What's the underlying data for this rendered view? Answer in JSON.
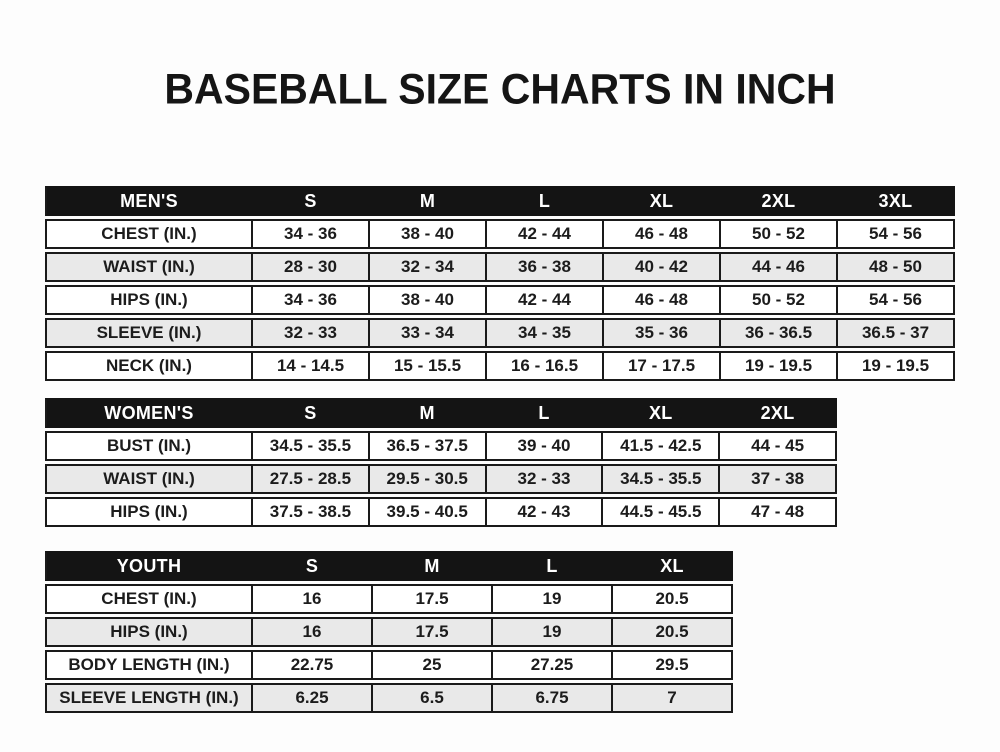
{
  "page": {
    "title": "BASEBALL SIZE CHARTS IN INCH"
  },
  "colors": {
    "header_bg": "#141414",
    "header_text": "#ffffff",
    "alt_row_bg": "#e9e9e9",
    "border": "#1a1a1a",
    "text": "#1c1c1c",
    "page_bg": "#fdfdfd"
  },
  "tables": [
    {
      "name": "mens",
      "header": [
        "MEN'S",
        "S",
        "M",
        "L",
        "XL",
        "2XL",
        "3XL"
      ],
      "rows": [
        [
          "CHEST (IN.)",
          "34 - 36",
          "38 - 40",
          "42 - 44",
          "46 - 48",
          "50 - 52",
          "54 - 56"
        ],
        [
          "WAIST (IN.)",
          "28 - 30",
          "32 - 34",
          "36 - 38",
          "40 - 42",
          "44 - 46",
          "48 - 50"
        ],
        [
          "HIPS (IN.)",
          "34 - 36",
          "38 - 40",
          "42 - 44",
          "46 - 48",
          "50 - 52",
          "54 - 56"
        ],
        [
          "SLEEVE (IN.)",
          "32 - 33",
          "33 - 34",
          "34 - 35",
          "35 - 36",
          "36 - 36.5",
          "36.5 - 37"
        ],
        [
          "NECK (IN.)",
          "14 - 14.5",
          "15 - 15.5",
          "16 - 16.5",
          "17 - 17.5",
          "19 - 19.5",
          "19 - 19.5"
        ]
      ]
    },
    {
      "name": "womens",
      "header": [
        "WOMEN'S",
        "S",
        "M",
        "L",
        "XL",
        "2XL"
      ],
      "rows": [
        [
          "BUST (IN.)",
          "34.5 - 35.5",
          "36.5 - 37.5",
          "39 - 40",
          "41.5 - 42.5",
          "44 - 45"
        ],
        [
          "WAIST (IN.)",
          "27.5 - 28.5",
          "29.5 - 30.5",
          "32 - 33",
          "34.5 - 35.5",
          "37 - 38"
        ],
        [
          "HIPS (IN.)",
          "37.5 - 38.5",
          "39.5 - 40.5",
          "42 - 43",
          "44.5 - 45.5",
          "47 - 48"
        ]
      ]
    },
    {
      "name": "youth",
      "header": [
        "YOUTH",
        "S",
        "M",
        "L",
        "XL"
      ],
      "rows": [
        [
          "CHEST (IN.)",
          "16",
          "17.5",
          "19",
          "20.5"
        ],
        [
          "HIPS (IN.)",
          "16",
          "17.5",
          "19",
          "20.5"
        ],
        [
          "BODY LENGTH (IN.)",
          "22.75",
          "25",
          "27.25",
          "29.5"
        ],
        [
          "SLEEVE LENGTH (IN.)",
          "6.25",
          "6.5",
          "6.75",
          "7"
        ]
      ]
    }
  ]
}
